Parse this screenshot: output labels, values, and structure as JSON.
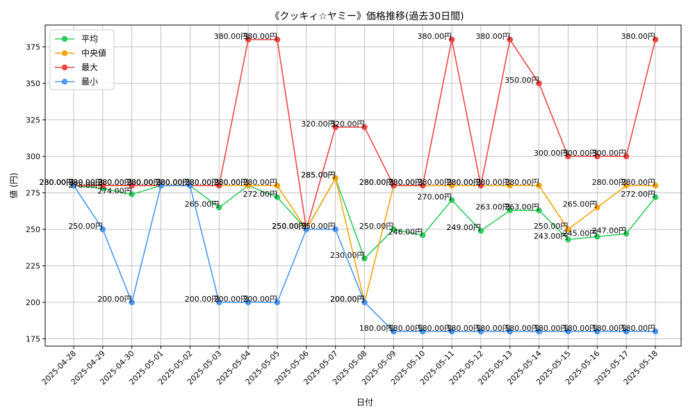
{
  "chart_data": {
    "type": "line",
    "title": "《クッキィ☆ヤミー》価格推移(過去30日間)",
    "xlabel": "日付",
    "ylabel": "値 (円)",
    "ylim": [
      170,
      390
    ],
    "yticks": [
      175,
      200,
      225,
      250,
      275,
      300,
      325,
      350,
      375
    ],
    "grid": true,
    "legend_position": "top-left",
    "x": [
      "2025-04-28",
      "2025-04-29",
      "2025-04-30",
      "2025-05-01",
      "2025-05-02",
      "2025-05-03",
      "2025-05-04",
      "2025-05-05",
      "2025-05-06",
      "2025-05-07",
      "2025-05-08",
      "2025-05-09",
      "2025-05-10",
      "2025-05-11",
      "2025-05-12",
      "2025-05-13",
      "2025-05-14",
      "2025-05-15",
      "2025-05-16",
      "2025-05-17",
      "2025-05-18"
    ],
    "series": [
      {
        "name": "平均",
        "color": "#2ecc5f",
        "values": [
          280,
          278,
          274,
          280,
          280,
          265,
          280,
          272,
          250,
          285,
          230,
          250,
          246,
          270,
          249,
          263,
          263,
          243,
          245,
          247,
          272
        ]
      },
      {
        "name": "中央値",
        "color": "#f5a40a",
        "values": [
          280,
          280,
          280,
          280,
          280,
          280,
          280,
          280,
          250,
          285,
          200,
          280,
          280,
          280,
          280,
          280,
          280,
          250,
          265,
          280,
          280
        ]
      },
      {
        "name": "最大",
        "color": "#ef4444",
        "values": [
          280,
          280,
          280,
          280,
          280,
          280,
          380,
          380,
          250,
          320,
          320,
          280,
          280,
          380,
          280,
          380,
          350,
          300,
          300,
          300,
          380
        ]
      },
      {
        "name": "最小",
        "color": "#4a97f0",
        "values": [
          280,
          250,
          200,
          280,
          280,
          200,
          200,
          200,
          250,
          250,
          200,
          180,
          180,
          180,
          180,
          180,
          180,
          180,
          180,
          180,
          180
        ]
      }
    ],
    "label_suffix": "円",
    "label_decimals": 2
  }
}
